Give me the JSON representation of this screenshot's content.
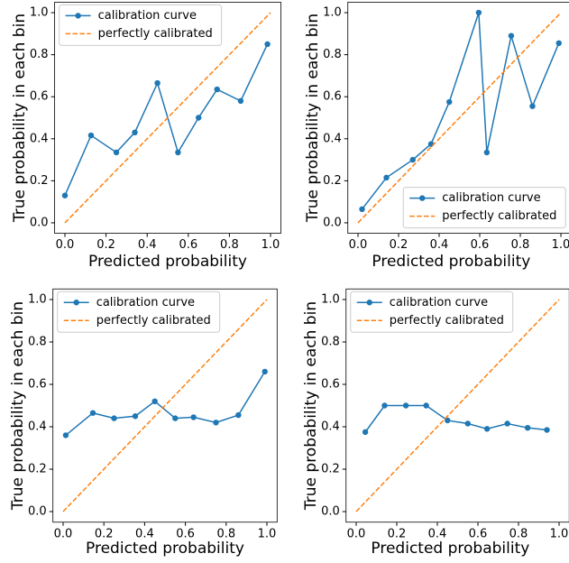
{
  "chart_data": [
    {
      "type": "line",
      "xlabel": "Predicted probability",
      "ylabel": "True probability in each bin",
      "xlim": [
        -0.05,
        1.05
      ],
      "ylim": [
        -0.05,
        1.05
      ],
      "legend": "upper left",
      "xticks": [
        {
          "value": 0,
          "label": "0.0"
        },
        {
          "value": 0.2,
          "label": "0.2"
        },
        {
          "value": 0.4,
          "label": "0.4"
        },
        {
          "value": 0.6,
          "label": "0.6"
        },
        {
          "value": 0.8,
          "label": "0.8"
        },
        {
          "value": 1,
          "label": "1.0"
        }
      ],
      "yticks": [
        {
          "value": 0,
          "label": "0.0"
        },
        {
          "value": 0.2,
          "label": "0.2"
        },
        {
          "value": 0.4,
          "label": "0.4"
        },
        {
          "value": 0.6,
          "label": "0.6"
        },
        {
          "value": 0.8,
          "label": "0.8"
        },
        {
          "value": 1,
          "label": "1.0"
        }
      ],
      "series": [
        {
          "name": "calibration curve",
          "color": "#1f77b4",
          "linestyle": "-",
          "marker": "o",
          "x": [
            0.0,
            0.127,
            0.25,
            0.34,
            0.45,
            0.55,
            0.65,
            0.74,
            0.855,
            0.985
          ],
          "values": [
            0.13,
            0.416,
            0.335,
            0.43,
            0.665,
            0.335,
            0.5,
            0.635,
            0.58,
            0.85
          ]
        },
        {
          "name": "perfectly calibrated",
          "color": "#ff7f0e",
          "linestyle": "--",
          "x": [
            0,
            1
          ],
          "values": [
            0,
            1
          ]
        }
      ]
    },
    {
      "type": "line",
      "xlabel": "Predicted probability",
      "ylabel": "True probability in each bin",
      "xlim": [
        -0.05,
        1.05
      ],
      "ylim": [
        -0.05,
        1.05
      ],
      "legend": "lower right",
      "xticks": [
        {
          "value": 0,
          "label": "0.0"
        },
        {
          "value": 0.2,
          "label": "0.2"
        },
        {
          "value": 0.4,
          "label": "0.4"
        },
        {
          "value": 0.6,
          "label": "0.6"
        },
        {
          "value": 0.8,
          "label": "0.8"
        },
        {
          "value": 1,
          "label": "1.0"
        }
      ],
      "yticks": [
        {
          "value": 0,
          "label": "0.0"
        },
        {
          "value": 0.2,
          "label": "0.2"
        },
        {
          "value": 0.4,
          "label": "0.4"
        },
        {
          "value": 0.6,
          "label": "0.6"
        },
        {
          "value": 0.8,
          "label": "0.8"
        },
        {
          "value": 1,
          "label": "1.0"
        }
      ],
      "series": [
        {
          "name": "calibration curve",
          "color": "#1f77b4",
          "linestyle": "-",
          "marker": "o",
          "x": [
            0.02,
            0.14,
            0.27,
            0.36,
            0.45,
            0.595,
            0.635,
            0.755,
            0.86,
            0.99
          ],
          "values": [
            0.065,
            0.215,
            0.3,
            0.375,
            0.575,
            1.0,
            0.335,
            0.89,
            0.555,
            0.855
          ]
        },
        {
          "name": "perfectly calibrated",
          "color": "#ff7f0e",
          "linestyle": "--",
          "x": [
            0,
            1
          ],
          "values": [
            0,
            1
          ]
        }
      ]
    },
    {
      "type": "line",
      "xlabel": "Predicted probability",
      "ylabel": "True probability in each bin",
      "xlim": [
        -0.05,
        1.05
      ],
      "ylim": [
        -0.05,
        1.05
      ],
      "legend": "upper left",
      "xticks": [
        {
          "value": 0,
          "label": "0.0"
        },
        {
          "value": 0.2,
          "label": "0.2"
        },
        {
          "value": 0.4,
          "label": "0.4"
        },
        {
          "value": 0.6,
          "label": "0.6"
        },
        {
          "value": 0.8,
          "label": "0.8"
        },
        {
          "value": 1,
          "label": "1.0"
        }
      ],
      "yticks": [
        {
          "value": 0,
          "label": "0.0"
        },
        {
          "value": 0.2,
          "label": "0.2"
        },
        {
          "value": 0.4,
          "label": "0.4"
        },
        {
          "value": 0.6,
          "label": "0.6"
        },
        {
          "value": 0.8,
          "label": "0.8"
        },
        {
          "value": 1,
          "label": "1.0"
        }
      ],
      "series": [
        {
          "name": "calibration curve",
          "color": "#1f77b4",
          "linestyle": "-",
          "marker": "o",
          "x": [
            0.013,
            0.146,
            0.25,
            0.354,
            0.45,
            0.55,
            0.64,
            0.75,
            0.86,
            0.99
          ],
          "values": [
            0.36,
            0.465,
            0.44,
            0.45,
            0.52,
            0.44,
            0.445,
            0.42,
            0.455,
            0.66
          ]
        },
        {
          "name": "perfectly calibrated",
          "color": "#ff7f0e",
          "linestyle": "--",
          "x": [
            0,
            1
          ],
          "values": [
            0,
            1
          ]
        }
      ]
    },
    {
      "type": "line",
      "xlabel": "Predicted probability",
      "ylabel": "True probability in each bin",
      "xlim": [
        -0.05,
        1.05
      ],
      "ylim": [
        -0.05,
        1.05
      ],
      "legend": "upper left",
      "xticks": [
        {
          "value": 0,
          "label": "0.0"
        },
        {
          "value": 0.2,
          "label": "0.2"
        },
        {
          "value": 0.4,
          "label": "0.4"
        },
        {
          "value": 0.6,
          "label": "0.6"
        },
        {
          "value": 0.8,
          "label": "0.8"
        },
        {
          "value": 1,
          "label": "1.0"
        }
      ],
      "yticks": [
        {
          "value": 0,
          "label": "0.0"
        },
        {
          "value": 0.2,
          "label": "0.2"
        },
        {
          "value": 0.4,
          "label": "0.4"
        },
        {
          "value": 0.6,
          "label": "0.6"
        },
        {
          "value": 0.8,
          "label": "0.8"
        },
        {
          "value": 1,
          "label": "1.0"
        }
      ],
      "series": [
        {
          "name": "calibration curve",
          "color": "#1f77b4",
          "linestyle": "-",
          "marker": "o",
          "x": [
            0.045,
            0.14,
            0.245,
            0.345,
            0.45,
            0.55,
            0.645,
            0.745,
            0.845,
            0.94
          ],
          "values": [
            0.375,
            0.5,
            0.5,
            0.5,
            0.43,
            0.415,
            0.39,
            0.415,
            0.395,
            0.385
          ]
        },
        {
          "name": "perfectly calibrated",
          "color": "#ff7f0e",
          "linestyle": "--",
          "x": [
            0,
            1
          ],
          "values": [
            0,
            1
          ]
        }
      ]
    }
  ]
}
